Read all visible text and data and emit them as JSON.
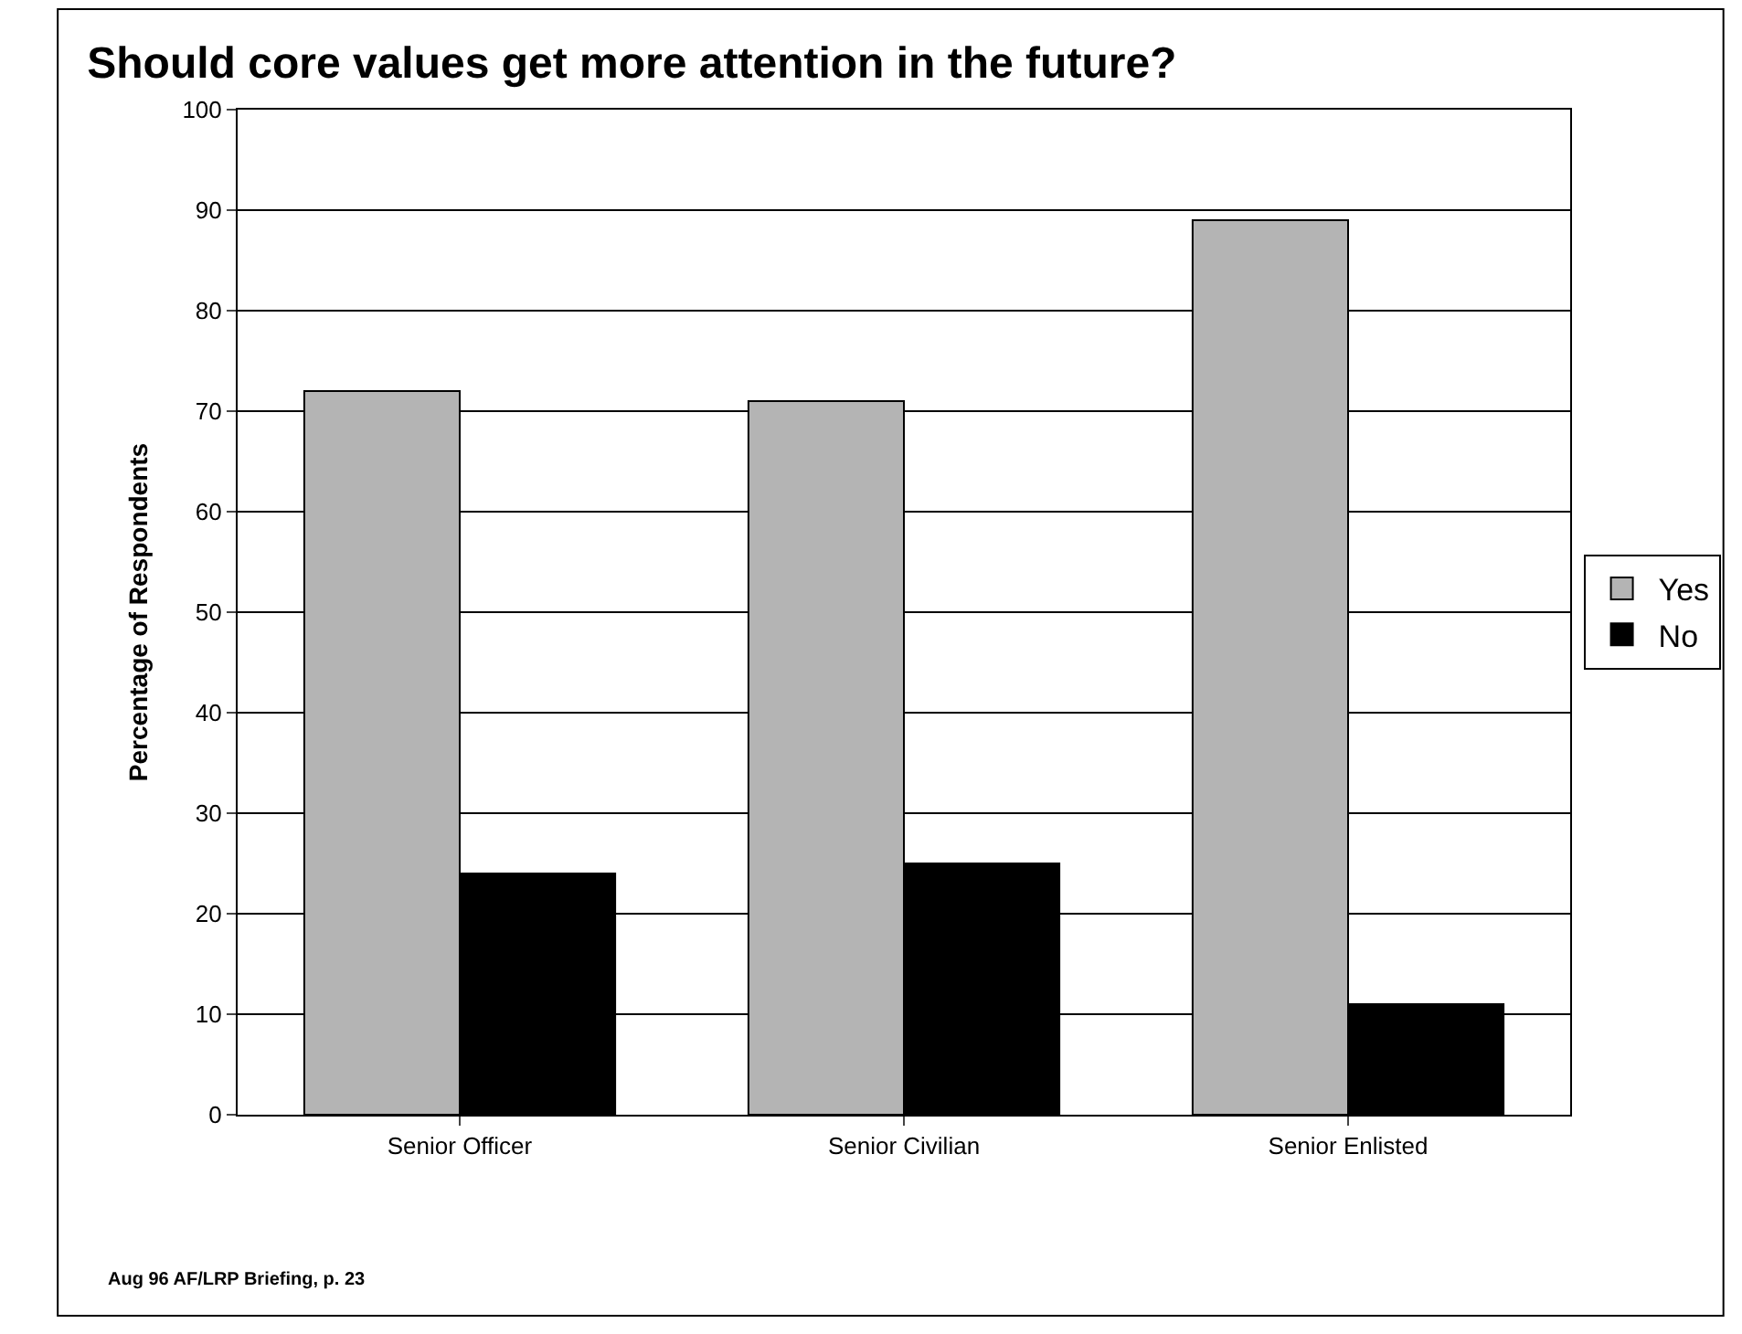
{
  "chart_data": {
    "type": "bar",
    "title": "Should core values get more attention in the future?",
    "ylabel": "Percentage of Respondents",
    "categories": [
      "Senior Officer",
      "Senior Civilian",
      "Senior Enlisted"
    ],
    "series": [
      {
        "name": "Yes",
        "color": "#b4b4b4",
        "values": [
          72,
          71,
          89
        ]
      },
      {
        "name": "No",
        "color": "#000000",
        "values": [
          24,
          25,
          11
        ]
      }
    ],
    "ylim": [
      0,
      100
    ],
    "yticks": [
      0,
      10,
      20,
      30,
      40,
      50,
      60,
      70,
      80,
      90,
      100
    ],
    "grid": "y",
    "legend": "right",
    "annotations": [
      "Aug 96 AF/LRP Briefing, p. 23"
    ]
  }
}
